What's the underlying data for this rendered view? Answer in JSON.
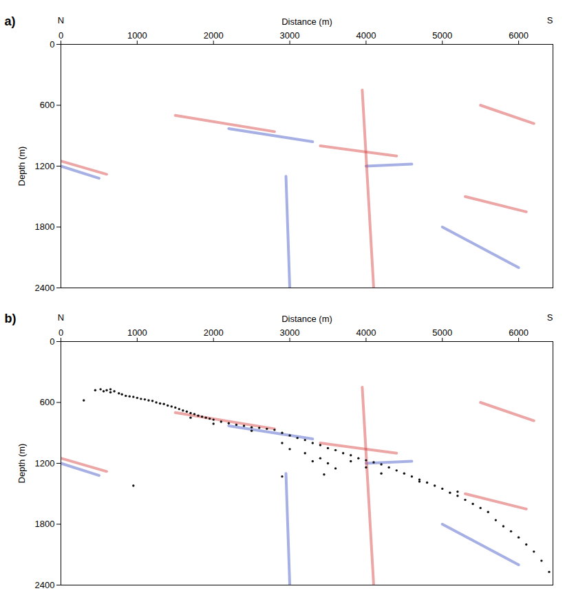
{
  "chart_data": [
    {
      "type": "seismic_section",
      "panel": "a)",
      "left_label": "N",
      "right_label": "S",
      "x_label": "Distance (m)",
      "y_label": "Depth (m)",
      "xlim": [
        0,
        6450
      ],
      "ylim": [
        0,
        2400
      ],
      "xticks": [
        0,
        1000,
        2000,
        3000,
        4000,
        5000,
        6000
      ],
      "yticks": [
        0,
        600,
        1200,
        1800,
        2400
      ],
      "reflectors": [
        {
          "color": "#d43a3a",
          "x": [
            0,
            600
          ],
          "y": [
            1150,
            1280
          ]
        },
        {
          "color": "#3a4fc4",
          "x": [
            0,
            500
          ],
          "y": [
            1200,
            1320
          ]
        },
        {
          "color": "#d43a3a",
          "x": [
            1500,
            2800
          ],
          "y": [
            700,
            860
          ]
        },
        {
          "color": "#3a4fc4",
          "x": [
            2200,
            3300
          ],
          "y": [
            830,
            960
          ]
        },
        {
          "color": "#d43a3a",
          "x": [
            3400,
            4400
          ],
          "y": [
            1000,
            1100
          ]
        },
        {
          "color": "#3a4fc4",
          "x": [
            4000,
            4600
          ],
          "y": [
            1200,
            1180
          ]
        },
        {
          "color": "#d43a3a",
          "x": [
            5500,
            6200
          ],
          "y": [
            600,
            780
          ]
        },
        {
          "color": "#3a4fc4",
          "x": [
            5000,
            6000
          ],
          "y": [
            1800,
            2200
          ]
        },
        {
          "color": "#d43a3a",
          "x": [
            5300,
            6100
          ],
          "y": [
            1500,
            1650
          ]
        },
        {
          "color": "#3a4fc4",
          "x": [
            2950,
            3000
          ],
          "y": [
            1300,
            2400
          ]
        },
        {
          "color": "#d43a3a",
          "x": [
            3950,
            4100
          ],
          "y": [
            450,
            2400
          ]
        }
      ]
    },
    {
      "type": "scatter",
      "panel": "b)",
      "left_label": "N",
      "right_label": "S",
      "x_label": "Distance (m)",
      "y_label": "Depth (m)",
      "xlim": [
        0,
        6450
      ],
      "ylim": [
        0,
        2400
      ],
      "xticks": [
        0,
        1000,
        2000,
        3000,
        4000,
        5000,
        6000
      ],
      "yticks": [
        0,
        600,
        1200,
        1800,
        2400
      ],
      "color": "#111111",
      "marker": "circle",
      "reflectors": [
        {
          "color": "#d43a3a",
          "x": [
            0,
            600
          ],
          "y": [
            1150,
            1280
          ]
        },
        {
          "color": "#3a4fc4",
          "x": [
            0,
            500
          ],
          "y": [
            1200,
            1320
          ]
        },
        {
          "color": "#d43a3a",
          "x": [
            1500,
            2800
          ],
          "y": [
            700,
            860
          ]
        },
        {
          "color": "#3a4fc4",
          "x": [
            2200,
            3300
          ],
          "y": [
            830,
            960
          ]
        },
        {
          "color": "#d43a3a",
          "x": [
            3400,
            4400
          ],
          "y": [
            1000,
            1100
          ]
        },
        {
          "color": "#3a4fc4",
          "x": [
            4000,
            4600
          ],
          "y": [
            1200,
            1180
          ]
        },
        {
          "color": "#d43a3a",
          "x": [
            5500,
            6200
          ],
          "y": [
            600,
            780
          ]
        },
        {
          "color": "#3a4fc4",
          "x": [
            5000,
            6000
          ],
          "y": [
            1800,
            2200
          ]
        },
        {
          "color": "#d43a3a",
          "x": [
            5300,
            6100
          ],
          "y": [
            1500,
            1650
          ]
        },
        {
          "color": "#3a4fc4",
          "x": [
            2950,
            3000
          ],
          "y": [
            1300,
            2400
          ]
        },
        {
          "color": "#d43a3a",
          "x": [
            3950,
            4100
          ],
          "y": [
            450,
            2400
          ]
        }
      ],
      "x": [
        450,
        520,
        560,
        600,
        650,
        700,
        760,
        800,
        850,
        900,
        950,
        1000,
        1050,
        1100,
        1150,
        1200,
        1250,
        1300,
        1350,
        1400,
        1450,
        1500,
        1550,
        1600,
        1650,
        1700,
        1750,
        1800,
        1850,
        1900,
        1950,
        2000,
        2100,
        2200,
        2300,
        2400,
        2500,
        2600,
        2700,
        2800,
        2900,
        3000,
        3100,
        3200,
        3300,
        3400,
        3500,
        3600,
        3700,
        3800,
        3900,
        4000,
        4100,
        4200,
        4300,
        4400,
        4500,
        4600,
        4700,
        4800,
        4900,
        5000,
        5100,
        5200,
        5300,
        5400,
        5500,
        5600,
        5700,
        5800,
        5900,
        6000,
        6100,
        6200,
        6300,
        6400,
        300,
        650,
        1700,
        2000,
        2500,
        2900,
        3000,
        3200,
        3300,
        3400,
        3500,
        3600,
        3450,
        2900,
        950,
        4200,
        4700,
        5200,
        4000,
        3800
      ],
      "y": [
        480,
        470,
        490,
        480,
        500,
        490,
        510,
        520,
        535,
        540,
        545,
        555,
        565,
        570,
        580,
        585,
        600,
        610,
        615,
        630,
        640,
        650,
        665,
        680,
        690,
        705,
        715,
        730,
        740,
        750,
        760,
        770,
        790,
        805,
        820,
        830,
        845,
        850,
        860,
        870,
        900,
        925,
        950,
        970,
        1000,
        1020,
        1050,
        1070,
        1100,
        1120,
        1150,
        1170,
        1190,
        1210,
        1240,
        1270,
        1300,
        1330,
        1360,
        1390,
        1420,
        1450,
        1490,
        1520,
        1560,
        1600,
        1640,
        1680,
        1760,
        1820,
        1870,
        1930,
        2000,
        2070,
        2160,
        2270,
        580,
        470,
        750,
        810,
        880,
        1000,
        1060,
        1100,
        1180,
        1150,
        1200,
        1250,
        1310,
        1330,
        1420,
        1300,
        1380,
        1480,
        1240,
        1180
      ]
    }
  ]
}
